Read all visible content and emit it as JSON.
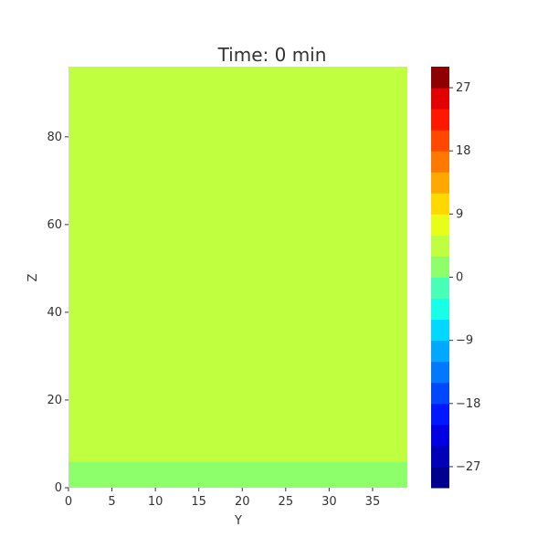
{
  "chart_data": {
    "type": "heatmap",
    "title": "Time: 0 min",
    "xlabel": "Y",
    "ylabel": "Z",
    "xlim": [
      0,
      39
    ],
    "ylim": [
      0,
      96
    ],
    "x_ticks": [
      0,
      5,
      10,
      15,
      20,
      25,
      30,
      35
    ],
    "y_ticks": [
      0,
      20,
      40,
      60,
      80
    ],
    "regions": [
      {
        "z_from": 0,
        "z_to": 6,
        "value": 0,
        "color": "#8cff6b"
      },
      {
        "z_from": 6,
        "z_to": 96,
        "value": 6,
        "color": "#bfff3f"
      }
    ],
    "colorbar": {
      "min": -30,
      "max": 30,
      "step": 3,
      "ticks": [
        -27,
        -18,
        -9,
        0,
        9,
        18,
        27
      ],
      "tick_labels": [
        "−27",
        "−18",
        "−9",
        "0",
        "9",
        "18",
        "27"
      ],
      "colors": [
        "#00008f",
        "#0000b8",
        "#0000e3",
        "#0018ff",
        "#0048ff",
        "#0078ff",
        "#00a8ff",
        "#00d8ff",
        "#18ffe7",
        "#48ffb7",
        "#8cff6b",
        "#bfff3f",
        "#e7ff18",
        "#ffd800",
        "#ffa800",
        "#ff7800",
        "#ff4800",
        "#ff1800",
        "#e30000",
        "#8f0000"
      ]
    }
  }
}
